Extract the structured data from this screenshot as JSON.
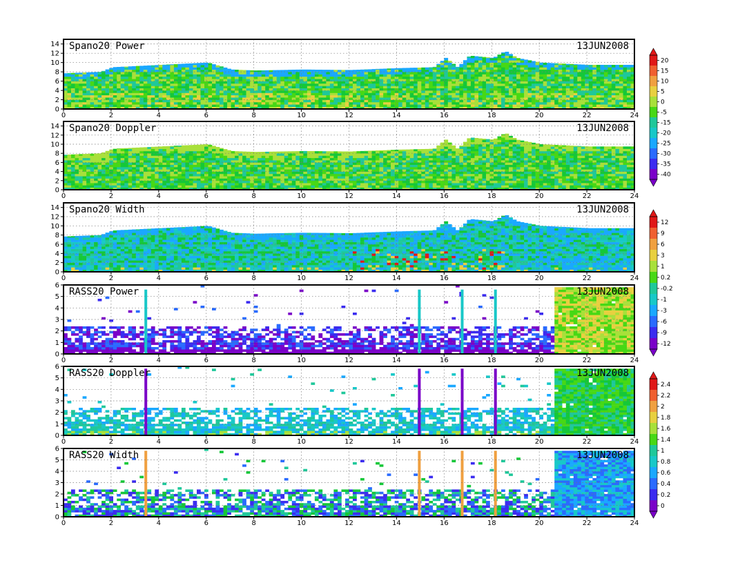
{
  "chart_data": {
    "type": "heatmap",
    "date": "13JUN2008",
    "x_axis": {
      "range": [
        0,
        24
      ],
      "ticks": [
        0,
        2,
        4,
        6,
        8,
        10,
        12,
        14,
        16,
        18,
        20,
        22,
        24
      ]
    },
    "grid": true,
    "colormap": [
      "#7a00c8",
      "#3b2cf0",
      "#2a6bff",
      "#1aa8ff",
      "#18c8c8",
      "#1fc89a",
      "#15c838",
      "#47d815",
      "#a8e03a",
      "#e8d040",
      "#f0a040",
      "#f06030",
      "#e01818"
    ],
    "panels": [
      {
        "title": "Spano20  Power",
        "date": "13JUN2008",
        "y_ticks": [
          0,
          2,
          4,
          6,
          8,
          10,
          12,
          14
        ],
        "ylim": [
          0,
          15
        ],
        "profile": {
          "hours": [
            0,
            1.5,
            2,
            4,
            6,
            7,
            8,
            10,
            12,
            14,
            15.5,
            16,
            16.5,
            17,
            18,
            18.5,
            19,
            20,
            22,
            24
          ],
          "tops": [
            7.7,
            8,
            9,
            9.5,
            10,
            8.5,
            8.3,
            8.5,
            8.4,
            8.8,
            9,
            11,
            9,
            11.5,
            11,
            12.5,
            11,
            10,
            9.5,
            9.5
          ]
        },
        "colorbar": {
          "labels": [
            "20",
            "15",
            "10",
            "5",
            "0",
            "-5",
            "-15",
            "-20",
            "-25",
            "-30",
            "-35",
            "-40"
          ]
        }
      },
      {
        "title": "Spano20  Doppler",
        "date": "13JUN2008",
        "y_ticks": [
          0,
          2,
          4,
          6,
          8,
          10,
          12,
          14
        ],
        "ylim": [
          0,
          15
        ],
        "profile": {
          "hours": [
            0,
            1.5,
            2,
            4,
            6,
            7,
            8,
            10,
            12,
            14,
            15.5,
            16,
            16.5,
            17,
            18,
            18.5,
            19,
            20,
            22,
            24
          ],
          "tops": [
            7.7,
            8,
            9,
            9.5,
            10,
            8.5,
            8.3,
            8.5,
            8.4,
            8.8,
            9,
            11,
            9,
            11.5,
            11,
            12.5,
            11,
            10,
            9.5,
            9.5
          ]
        },
        "colorbar": null
      },
      {
        "title": "Spano20  Width",
        "date": "13JUN2008",
        "y_ticks": [
          0,
          2,
          4,
          6,
          8,
          10,
          12,
          14
        ],
        "ylim": [
          0,
          15
        ],
        "profile": {
          "hours": [
            0,
            1.5,
            2,
            4,
            6,
            7,
            8,
            10,
            12,
            14,
            15.5,
            16,
            16.5,
            17,
            18,
            18.5,
            19,
            20,
            22,
            24
          ],
          "tops": [
            7.7,
            8,
            9,
            9.5,
            10,
            8.5,
            8.3,
            8.5,
            8.4,
            8.8,
            9,
            11,
            9,
            11.5,
            11,
            12.5,
            11,
            10,
            9.5,
            9.5
          ]
        },
        "colorbar": {
          "labels": [
            "12",
            "9",
            "6",
            "3",
            "1",
            "0.2",
            "-0.2",
            "-1",
            "-3",
            "-6",
            "-9",
            "-12"
          ]
        }
      },
      {
        "title": "RASS20  Power",
        "date": "13JUN2008",
        "y_ticks": [
          0,
          1,
          2,
          3,
          4,
          5,
          6
        ],
        "ylim": [
          0,
          6
        ],
        "spikes": [
          3.4,
          14.9,
          16.7,
          18.1
        ],
        "dense_block_start": 20.6,
        "colorbar": null
      },
      {
        "title": "RASS20  Doppler",
        "date": "13JUN2008",
        "y_ticks": [
          0,
          1,
          2,
          3,
          4,
          5,
          6
        ],
        "ylim": [
          0,
          6
        ],
        "spikes": [
          3.4,
          14.9,
          16.7,
          18.1
        ],
        "dense_block_start": 20.6,
        "colorbar": {
          "labels": [
            "2.4",
            "2.2",
            "2",
            "1.8",
            "1.6",
            "1.4",
            "1",
            "0.8",
            "0.6",
            "0.4",
            "0.2",
            "0"
          ]
        }
      },
      {
        "title": "RASS20  Width",
        "date": "13JUN2008",
        "y_ticks": [
          0,
          1,
          2,
          3,
          4,
          5,
          6
        ],
        "ylim": [
          0,
          6
        ],
        "spikes": [
          3.4,
          14.9,
          16.7,
          18.1
        ],
        "dense_block_start": 20.6,
        "colorbar": null
      }
    ]
  }
}
